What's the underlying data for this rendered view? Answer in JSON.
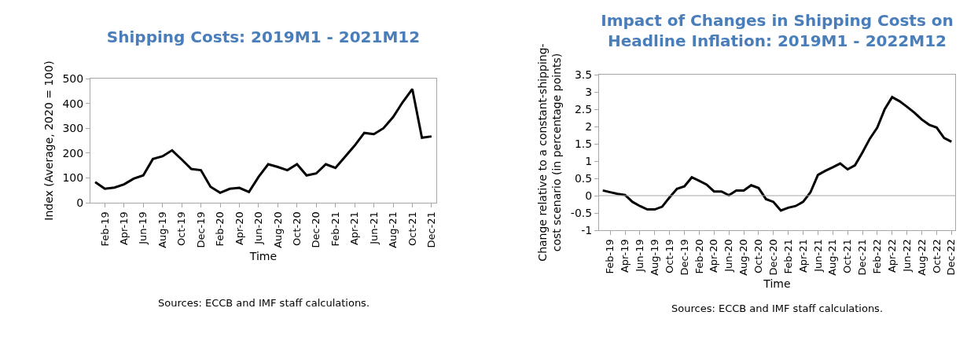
{
  "chart_data": [
    {
      "type": "line",
      "title": "Shipping Costs: 2019M1 - 2021M12",
      "xlabel": "Time",
      "ylabel": "Index (Average, 2020 = 100)",
      "categories": [
        null,
        "Feb-19",
        null,
        "Apr-19",
        null,
        "Jun-19",
        null,
        "Aug-19",
        null,
        "Oct-19",
        null,
        "Dec-19",
        null,
        "Feb-20",
        null,
        "Apr-20",
        null,
        "Jun-20",
        null,
        "Aug-20",
        null,
        "Oct-20",
        null,
        "Dec-20",
        null,
        "Feb-21",
        null,
        "Apr-21",
        null,
        "Jun-21",
        null,
        "Aug-21",
        null,
        "Oct-21",
        null,
        "Dec-21"
      ],
      "values": [
        83,
        56,
        61,
        74,
        97,
        110,
        176,
        187,
        211,
        174,
        136,
        131,
        64,
        40,
        56,
        60,
        43,
        104,
        155,
        144,
        131,
        155,
        110,
        118,
        155,
        140,
        185,
        230,
        281,
        276,
        300,
        345,
        405,
        458,
        262,
        267
      ],
      "color": "#000000",
      "ylim": [
        0,
        500
      ],
      "yticks": [
        0,
        100,
        200,
        300,
        400,
        500
      ],
      "marker": "none",
      "annotations": [
        "Sources: ECCB and IMF staff calculations."
      ]
    },
    {
      "type": "line",
      "title": "Impact of Changes in Shipping Costs on\nHeadline Inflation: 2019M1 - 2022M12",
      "xlabel": "Time",
      "ylabel": "Change relative to a constant-shipping-\ncost scenario (in percentage points)",
      "categories": [
        null,
        "Feb-19",
        null,
        "Apr-19",
        null,
        "Jun-19",
        null,
        "Aug-19",
        null,
        "Oct-19",
        null,
        "Dec-19",
        null,
        "Feb-20",
        null,
        "Apr-20",
        null,
        "Jun-20",
        null,
        "Aug-20",
        null,
        "Oct-20",
        null,
        "Dec-20",
        null,
        "Feb-21",
        null,
        "Apr-21",
        null,
        "Jun-21",
        null,
        "Aug-21",
        null,
        "Oct-21",
        null,
        "Dec-21",
        null,
        "Feb-22",
        null,
        "Apr-22",
        null,
        "Jun-22",
        null,
        "Aug-22",
        null,
        "Oct-22",
        null,
        "Dec-22"
      ],
      "values": [
        0.15,
        0.1,
        0.05,
        0.02,
        -0.18,
        -0.3,
        -0.4,
        -0.4,
        -0.32,
        -0.05,
        0.2,
        0.27,
        0.53,
        0.43,
        0.32,
        0.12,
        0.12,
        0.01,
        0.15,
        0.15,
        0.3,
        0.22,
        -0.1,
        -0.18,
        -0.43,
        -0.35,
        -0.3,
        -0.18,
        0.1,
        0.6,
        0.72,
        0.82,
        0.93,
        0.76,
        0.88,
        1.25,
        1.65,
        1.97,
        2.5,
        2.85,
        2.73,
        2.57,
        2.4,
        2.2,
        2.05,
        1.97,
        1.67,
        1.56
      ],
      "color": "#000000",
      "ylim": [
        -1,
        3.5
      ],
      "yticks": [
        -1,
        -0.5,
        0,
        0.5,
        1,
        1.5,
        2,
        2.5,
        3,
        3.5
      ],
      "marker": "none",
      "ref_lines": [
        {
          "axis": "y",
          "value": 0,
          "color": "#a6a6a6"
        }
      ],
      "annotations": [
        "Sources: ECCB and IMF staff calculations."
      ]
    }
  ]
}
